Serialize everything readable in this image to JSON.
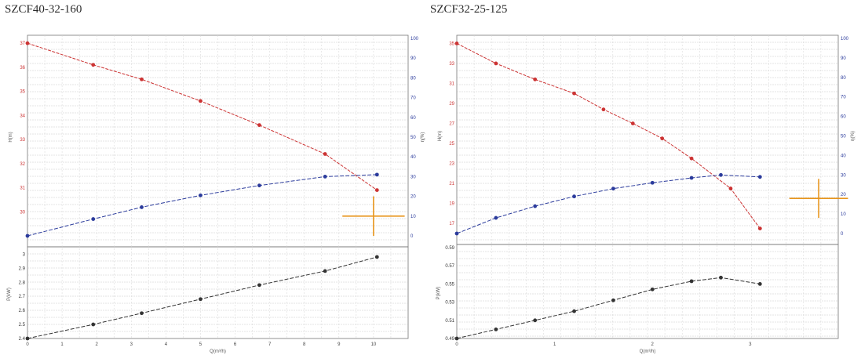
{
  "charts": [
    {
      "title": "SZCF40-32-160",
      "xlabel": "Q(m³/h)",
      "h_label": "H(m)",
      "eta_label": "η(%)",
      "p_label": "P(kW)"
    },
    {
      "title": "SZCF32-25-125",
      "xlabel": "Q(m³/h)",
      "h_label": "H(m)",
      "eta_label": "η(%)",
      "p_label": "P(kW)"
    }
  ],
  "chart_data": [
    {
      "type": "line",
      "title": "SZCF40-32-160",
      "xlabel": "Q(m³/h)",
      "xlim": [
        0,
        11
      ],
      "xticks": [
        0,
        1,
        2,
        3,
        4,
        5,
        6,
        7,
        8,
        9,
        10
      ],
      "colors": {
        "head": "#cc3333",
        "efficiency": "#2b3b9c",
        "power": "#333333",
        "duty": "#e8951c"
      },
      "head": {
        "name": "H(m)",
        "ylim": [
          29,
          37.2
        ],
        "yticks": [
          30,
          31,
          32,
          33,
          34,
          35,
          36,
          37
        ],
        "x": [
          0,
          1.9,
          3.3,
          5,
          6.7,
          8.6,
          10.1
        ],
        "y": [
          37,
          36.1,
          35.5,
          34.6,
          33.6,
          32.4,
          30.9
        ]
      },
      "efficiency": {
        "name": "η(%)",
        "ylim": [
          0,
          100
        ],
        "yticks": [
          0,
          10,
          20,
          30,
          40,
          50,
          60,
          70,
          80,
          90,
          100
        ],
        "x": [
          0,
          1.9,
          3.3,
          5,
          6.7,
          8.6,
          10.1
        ],
        "y": [
          0,
          8.5,
          14.5,
          20.5,
          25.5,
          30,
          31
        ]
      },
      "power": {
        "name": "P(kW)",
        "ylim": [
          2.4,
          3.03
        ],
        "yticks": [
          2.4,
          2.5,
          2.6,
          2.7,
          2.8,
          2.9,
          3.0
        ],
        "x": [
          0,
          1.9,
          3.3,
          5,
          6.7,
          8.6,
          10.1
        ],
        "y": [
          2.4,
          2.5,
          2.58,
          2.68,
          2.78,
          2.88,
          2.98
        ]
      },
      "duty_point": {
        "x": 10,
        "x_half_range": 0.9,
        "eta": 10,
        "eta_half_range": 10
      }
    },
    {
      "type": "line",
      "title": "SZCF32-25-125",
      "xlabel": "Q(m³/h)",
      "xlim": [
        0,
        3.9
      ],
      "xticks": [
        0,
        1,
        2,
        3
      ],
      "colors": {
        "head": "#cc3333",
        "efficiency": "#2b3b9c",
        "power": "#333333",
        "duty": "#e8951c"
      },
      "head": {
        "name": "H(m)",
        "ylim": [
          16,
          35.5
        ],
        "yticks": [
          17,
          19,
          21,
          23,
          25,
          27,
          29,
          31,
          33,
          35
        ],
        "x": [
          0,
          0.4,
          0.8,
          1.2,
          1.5,
          1.8,
          2.1,
          2.4,
          2.8,
          3.1
        ],
        "y": [
          35,
          33,
          31.4,
          30,
          28.4,
          27,
          25.5,
          23.5,
          20.5,
          16.5
        ]
      },
      "efficiency": {
        "name": "η(%)",
        "ylim": [
          0,
          100
        ],
        "yticks": [
          0,
          10,
          20,
          30,
          40,
          50,
          60,
          70,
          80,
          90,
          100
        ],
        "x": [
          0,
          0.4,
          0.8,
          1.2,
          1.6,
          2,
          2.4,
          2.7,
          3.1
        ],
        "y": [
          0,
          8,
          14,
          19,
          23,
          26,
          28.5,
          30,
          29
        ]
      },
      "power": {
        "name": "P(kW)",
        "ylim": [
          0.49,
          0.59
        ],
        "yticks": [
          0.49,
          0.51,
          0.53,
          0.55,
          0.57,
          0.59
        ],
        "x": [
          0,
          0.4,
          0.8,
          1.2,
          1.6,
          2,
          2.4,
          2.7,
          3.1
        ],
        "y": [
          0.49,
          0.5,
          0.51,
          0.52,
          0.532,
          0.544,
          0.553,
          0.557,
          0.55
        ]
      },
      "duty_point": {
        "x": 3.7,
        "x_half_range": 0.3,
        "eta": 18,
        "eta_half_range": 10
      }
    }
  ]
}
